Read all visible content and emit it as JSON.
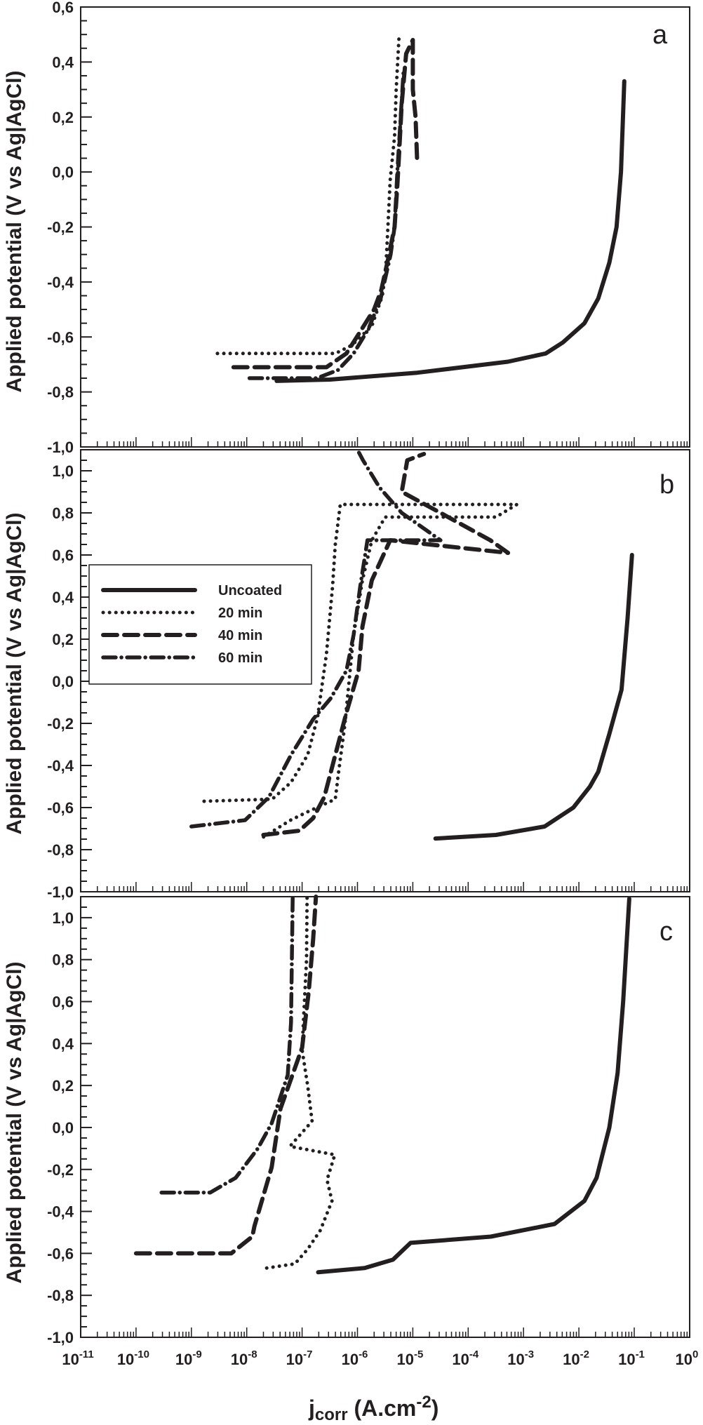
{
  "figure": {
    "x_axis_title_main": "j",
    "x_axis_title_sub": "corr",
    "x_axis_title_unit": " (A.cm",
    "x_axis_title_exp": "-2",
    "x_axis_title_close": ")",
    "y_axis_title": "Applied potential (V vs Ag|AgCl)",
    "legend": {
      "items": [
        {
          "label": "Uncoated",
          "style": "solid"
        },
        {
          "label": "20 min",
          "style": "dotted"
        },
        {
          "label": "40 min",
          "style": "dashed"
        },
        {
          "label": "60 min",
          "style": "dashdot"
        }
      ]
    },
    "x_tick_labels": [
      {
        "base": "10",
        "exp": "-11"
      },
      {
        "base": "10",
        "exp": "-10"
      },
      {
        "base": "10",
        "exp": "-9"
      },
      {
        "base": "10",
        "exp": "-8"
      },
      {
        "base": "10",
        "exp": "-7"
      },
      {
        "base": "10",
        "exp": "-6"
      },
      {
        "base": "10",
        "exp": "-5"
      },
      {
        "base": "10",
        "exp": "-4"
      },
      {
        "base": "10",
        "exp": "-3"
      },
      {
        "base": "10",
        "exp": "-2"
      },
      {
        "base": "10",
        "exp": "-1"
      },
      {
        "base": "10",
        "exp": "0"
      }
    ],
    "line_color": "#231f20"
  },
  "chart_data": [
    {
      "type": "line",
      "panel": "a",
      "title": "a",
      "xlabel": "jcorr (A.cm-2)",
      "ylabel": "Applied potential (V vs Ag|AgCl)",
      "xscale": "log",
      "xlim": [
        1e-11,
        1
      ],
      "ylim": [
        -1.0,
        0.6
      ],
      "yticks": [
        "0,6",
        "0,4",
        "0,2",
        "0,0",
        "-0,2",
        "-0,4",
        "-0,6",
        "-0,8",
        "-1,0"
      ],
      "ytick_values": [
        0.6,
        0.4,
        0.2,
        0.0,
        -0.2,
        -0.4,
        -0.6,
        -0.8,
        -1.0
      ],
      "series": [
        {
          "name": "Uncoated",
          "style": "solid",
          "points_log10j_E": [
            [
              -7.46,
              -0.76
            ],
            [
              -6.5,
              -0.755
            ],
            [
              -4.92,
              -0.73
            ],
            [
              -3.28,
              -0.69
            ],
            [
              -2.6,
              -0.66
            ],
            [
              -2.29,
              -0.62
            ],
            [
              -1.9,
              -0.55
            ],
            [
              -1.65,
              -0.46
            ],
            [
              -1.45,
              -0.33
            ],
            [
              -1.32,
              -0.2
            ],
            [
              -1.24,
              0.0
            ],
            [
              -1.18,
              0.33
            ]
          ]
        },
        {
          "name": "20 min",
          "style": "dotted",
          "points_log10j_E": [
            [
              -8.53,
              -0.66
            ],
            [
              -6.4,
              -0.66
            ],
            [
              -6.1,
              -0.63
            ],
            [
              -5.74,
              -0.56
            ],
            [
              -5.55,
              -0.45
            ],
            [
              -5.49,
              -0.36
            ],
            [
              -5.45,
              -0.2
            ],
            [
              -5.41,
              -0.03
            ],
            [
              -5.33,
              0.13
            ],
            [
              -5.3,
              0.3
            ],
            [
              -5.25,
              0.49
            ]
          ]
        },
        {
          "name": "40 min",
          "style": "dashed",
          "points_log10j_E": [
            [
              -8.24,
              -0.71
            ],
            [
              -6.56,
              -0.71
            ],
            [
              -6.2,
              -0.66
            ],
            [
              -5.98,
              -0.59
            ],
            [
              -5.7,
              -0.5
            ],
            [
              -5.57,
              -0.43
            ],
            [
              -5.45,
              -0.32
            ],
            [
              -5.33,
              -0.2
            ],
            [
              -5.28,
              -0.05
            ],
            [
              -5.25,
              0.06
            ],
            [
              -5.2,
              0.25
            ],
            [
              -5.12,
              0.43
            ],
            [
              -5.0,
              0.48
            ],
            [
              -5.0,
              0.3
            ],
            [
              -4.95,
              0.2
            ],
            [
              -4.92,
              0.03
            ]
          ]
        },
        {
          "name": "60 min",
          "style": "dashdot",
          "points_log10j_E": [
            [
              -7.95,
              -0.75
            ],
            [
              -6.73,
              -0.75
            ],
            [
              -6.35,
              -0.72
            ],
            [
              -6.07,
              -0.66
            ],
            [
              -5.8,
              -0.57
            ],
            [
              -5.58,
              -0.46
            ],
            [
              -5.4,
              -0.3
            ],
            [
              -5.33,
              -0.2
            ],
            [
              -5.28,
              0.0
            ],
            [
              -5.25,
              0.1
            ],
            [
              -5.17,
              0.36
            ]
          ]
        }
      ]
    },
    {
      "type": "line",
      "panel": "b",
      "title": "b",
      "xscale": "log",
      "xlim": [
        1e-11,
        1
      ],
      "ylim": [
        -1.0,
        1.1
      ],
      "yticks": [
        "1,0",
        "0,8",
        "0,6",
        "0,4",
        "0,2",
        "0,0",
        "-0,2",
        "-0,4",
        "-0,6",
        "-0,8",
        "-1,0"
      ],
      "ytick_values": [
        1.0,
        0.8,
        0.6,
        0.4,
        0.2,
        0.0,
        -0.2,
        -0.4,
        -0.6,
        -0.8,
        -1.0
      ],
      "legend_position": "upper left",
      "series": [
        {
          "name": "Uncoated",
          "style": "solid",
          "points_log10j_E": [
            [
              -4.59,
              -0.747
            ],
            [
              -3.5,
              -0.73
            ],
            [
              -2.62,
              -0.69
            ],
            [
              -2.1,
              -0.6
            ],
            [
              -1.8,
              -0.5
            ],
            [
              -1.65,
              -0.43
            ],
            [
              -1.45,
              -0.25
            ],
            [
              -1.23,
              -0.04
            ],
            [
              -1.12,
              0.3
            ],
            [
              -1.04,
              0.6
            ]
          ]
        },
        {
          "name": "20 min",
          "style": "dotted",
          "points_log10j_E": [
            [
              -8.77,
              -0.57
            ],
            [
              -7.54,
              -0.56
            ],
            [
              -7.2,
              -0.48
            ],
            [
              -6.9,
              -0.35
            ],
            [
              -6.72,
              -0.17
            ],
            [
              -6.56,
              0.13
            ],
            [
              -6.45,
              0.45
            ],
            [
              -6.4,
              0.65
            ],
            [
              -6.31,
              0.84
            ],
            [
              -3.12,
              0.84
            ],
            [
              -3.5,
              0.78
            ],
            [
              -5.5,
              0.78
            ],
            [
              -5.74,
              0.67
            ],
            [
              -5.91,
              0.48
            ],
            [
              -6.07,
              0.22
            ],
            [
              -6.23,
              -0.21
            ],
            [
              -6.35,
              -0.45
            ],
            [
              -6.4,
              -0.56
            ],
            [
              -6.9,
              -0.62
            ],
            [
              -7.21,
              -0.66
            ],
            [
              -7.7,
              -0.74
            ]
          ]
        },
        {
          "name": "40 min",
          "style": "dashed",
          "points_log10j_E": [
            [
              -7.7,
              -0.73
            ],
            [
              -7.05,
              -0.71
            ],
            [
              -6.8,
              -0.65
            ],
            [
              -6.6,
              -0.55
            ],
            [
              -6.4,
              -0.35
            ],
            [
              -6.2,
              -0.15
            ],
            [
              -5.98,
              0.05
            ],
            [
              -5.91,
              0.26
            ],
            [
              -5.74,
              0.48
            ],
            [
              -5.41,
              0.67
            ],
            [
              -3.28,
              0.61
            ],
            [
              -3.6,
              0.67
            ],
            [
              -4.5,
              0.8
            ],
            [
              -5.2,
              0.9
            ],
            [
              -5.1,
              1.05
            ],
            [
              -4.8,
              1.08
            ]
          ]
        },
        {
          "name": "60 min",
          "style": "dashdot",
          "points_log10j_E": [
            [
              -9.0,
              -0.69
            ],
            [
              -8.03,
              -0.66
            ],
            [
              -7.6,
              -0.55
            ],
            [
              -7.2,
              -0.35
            ],
            [
              -6.8,
              -0.18
            ],
            [
              -6.48,
              -0.08
            ],
            [
              -6.2,
              0.05
            ],
            [
              -6.07,
              0.22
            ],
            [
              -5.95,
              0.45
            ],
            [
              -5.82,
              0.67
            ],
            [
              -4.5,
              0.67
            ],
            [
              -5.2,
              0.8
            ],
            [
              -5.6,
              0.92
            ],
            [
              -5.9,
              1.05
            ],
            [
              -6.0,
              1.1
            ]
          ]
        }
      ]
    },
    {
      "type": "line",
      "panel": "c",
      "title": "c",
      "xscale": "log",
      "xlim": [
        1e-11,
        1
      ],
      "ylim": [
        -1.0,
        1.1
      ],
      "yticks": [
        "1,0",
        "0,8",
        "0,6",
        "0,4",
        "0,2",
        "0,0",
        "-0,2",
        "-0,4",
        "-0,6",
        "-0,8",
        "-1,0"
      ],
      "ytick_values": [
        1.0,
        0.8,
        0.6,
        0.4,
        0.2,
        0.0,
        -0.2,
        -0.4,
        -0.6,
        -0.8,
        -1.0
      ],
      "series": [
        {
          "name": "Uncoated",
          "style": "solid",
          "points_log10j_E": [
            [
              -6.71,
              -0.69
            ],
            [
              -5.87,
              -0.67
            ],
            [
              -5.36,
              -0.63
            ],
            [
              -5.04,
              -0.55
            ],
            [
              -3.59,
              -0.52
            ],
            [
              -2.44,
              -0.46
            ],
            [
              -1.9,
              -0.35
            ],
            [
              -1.68,
              -0.24
            ],
            [
              -1.45,
              0.0
            ],
            [
              -1.3,
              0.26
            ],
            [
              -1.2,
              0.6
            ],
            [
              -1.09,
              1.09
            ]
          ]
        },
        {
          "name": "20 min",
          "style": "dotted",
          "points_log10j_E": [
            [
              -7.64,
              -0.67
            ],
            [
              -7.13,
              -0.65
            ],
            [
              -6.9,
              -0.58
            ],
            [
              -6.67,
              -0.49
            ],
            [
              -6.46,
              -0.35
            ],
            [
              -6.55,
              -0.25
            ],
            [
              -6.41,
              -0.13
            ],
            [
              -7.22,
              -0.09
            ],
            [
              -6.82,
              0.03
            ],
            [
              -6.9,
              0.2
            ],
            [
              -7.0,
              0.37
            ],
            [
              -6.97,
              0.54
            ],
            [
              -6.92,
              0.8
            ],
            [
              -6.91,
              1.1
            ]
          ]
        },
        {
          "name": "40 min",
          "style": "dashed",
          "points_log10j_E": [
            [
              -10.0,
              -0.6
            ],
            [
              -8.28,
              -0.6
            ],
            [
              -7.9,
              -0.52
            ],
            [
              -7.86,
              -0.47
            ],
            [
              -7.55,
              -0.19
            ],
            [
              -7.39,
              0.09
            ],
            [
              -7.0,
              0.38
            ],
            [
              -6.88,
              0.65
            ],
            [
              -6.8,
              0.9
            ],
            [
              -6.75,
              1.1
            ]
          ]
        },
        {
          "name": "60 min",
          "style": "dashdot",
          "points_log10j_E": [
            [
              -9.54,
              -0.31
            ],
            [
              -8.66,
              -0.31
            ],
            [
              -8.2,
              -0.24
            ],
            [
              -7.8,
              -0.1
            ],
            [
              -7.55,
              0.02
            ],
            [
              -7.26,
              0.25
            ],
            [
              -7.2,
              0.5
            ],
            [
              -7.17,
              1.1
            ]
          ]
        }
      ]
    }
  ]
}
